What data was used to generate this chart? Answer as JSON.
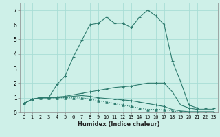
{
  "xlabel": "Humidex (Indice chaleur)",
  "x": [
    0,
    1,
    2,
    3,
    4,
    5,
    6,
    7,
    8,
    9,
    10,
    11,
    12,
    13,
    14,
    15,
    16,
    17,
    18,
    19,
    20,
    21,
    22,
    23
  ],
  "line_max": [
    0.6,
    0.9,
    1.0,
    1.0,
    1.9,
    2.5,
    3.8,
    4.9,
    6.0,
    6.1,
    6.5,
    6.1,
    6.1,
    5.8,
    6.5,
    7.0,
    6.6,
    6.0,
    3.5,
    2.1,
    0.5,
    0.3,
    0.3,
    0.3
  ],
  "line_upper": [
    0.6,
    0.9,
    1.0,
    1.0,
    1.05,
    1.1,
    1.2,
    1.3,
    1.4,
    1.5,
    1.6,
    1.7,
    1.75,
    1.8,
    1.9,
    2.0,
    2.0,
    2.0,
    1.4,
    0.5,
    0.3,
    0.2,
    0.2,
    0.2
  ],
  "line_lower": [
    0.6,
    0.9,
    1.0,
    1.0,
    1.0,
    1.05,
    1.1,
    1.15,
    1.1,
    1.0,
    0.95,
    0.9,
    0.85,
    0.8,
    0.7,
    0.6,
    0.5,
    0.4,
    0.2,
    0.1,
    0.05,
    0.05,
    0.05,
    0.05
  ],
  "line_min": [
    0.6,
    0.9,
    1.0,
    1.0,
    1.0,
    1.0,
    1.0,
    1.0,
    0.9,
    0.8,
    0.7,
    0.6,
    0.5,
    0.4,
    0.3,
    0.2,
    0.2,
    0.2,
    0.1,
    0.0,
    0.0,
    0.0,
    0.0,
    0.0
  ],
  "line_color": "#2d7b6e",
  "bg_color": "#cef0e8",
  "grid_color": "#a8ddd5",
  "ylim": [
    0,
    7.5
  ],
  "xlim": [
    -0.5,
    23.5
  ],
  "yticks": [
    0,
    1,
    2,
    3,
    4,
    5,
    6,
    7
  ],
  "xticks": [
    0,
    1,
    2,
    3,
    4,
    5,
    6,
    7,
    8,
    9,
    10,
    11,
    12,
    13,
    14,
    15,
    16,
    17,
    18,
    19,
    20,
    21,
    22,
    23
  ]
}
